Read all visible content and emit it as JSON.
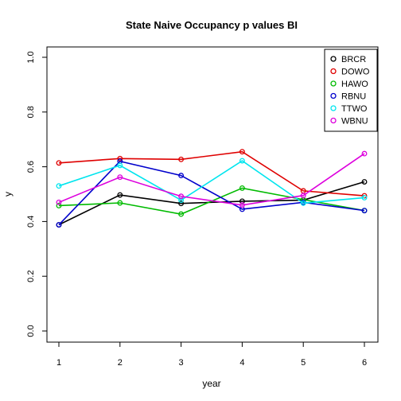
{
  "chart_data": {
    "type": "line",
    "title": "State Naive Occupancy p values BI",
    "xlabel": "year",
    "ylabel": "y",
    "x": [
      1,
      2,
      3,
      4,
      5,
      6
    ],
    "xlim": [
      1,
      6
    ],
    "ylim": [
      0.0,
      1.0
    ],
    "x_ticks": [
      "1",
      "2",
      "3",
      "4",
      "5",
      "6"
    ],
    "y_ticks": [
      "0.0",
      "0.2",
      "0.4",
      "0.6",
      "0.8",
      "1.0"
    ],
    "legend_position": "top-right",
    "grid": false,
    "series": [
      {
        "name": "BRCR",
        "color": "#000000",
        "values": [
          0.388,
          0.497,
          0.466,
          0.474,
          0.478,
          0.545
        ]
      },
      {
        "name": "DOWO",
        "color": "#df0000",
        "values": [
          0.614,
          0.63,
          0.627,
          0.655,
          0.512,
          0.494
        ]
      },
      {
        "name": "HAWO",
        "color": "#00bb00",
        "values": [
          0.458,
          0.468,
          0.427,
          0.522,
          0.48,
          0.44
        ]
      },
      {
        "name": "RBNU",
        "color": "#0000cc",
        "values": [
          0.388,
          0.62,
          0.568,
          0.445,
          0.47,
          0.44
        ]
      },
      {
        "name": "TTWO",
        "color": "#00e5ee",
        "values": [
          0.53,
          0.605,
          0.478,
          0.622,
          0.467,
          0.487
        ]
      },
      {
        "name": "WBNU",
        "color": "#dd00dd",
        "values": [
          0.47,
          0.562,
          0.492,
          0.46,
          0.495,
          0.648
        ]
      }
    ]
  }
}
